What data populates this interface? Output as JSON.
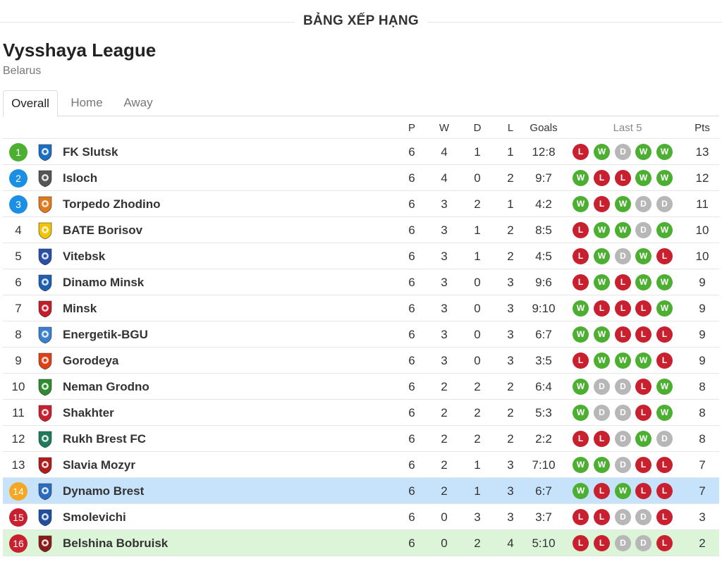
{
  "section_title": "BẢNG XẾP HẠNG",
  "league": {
    "name": "Vysshaya League",
    "country": "Belarus"
  },
  "tabs": [
    {
      "label": "Overall",
      "active": true
    },
    {
      "label": "Home",
      "active": false
    },
    {
      "label": "Away",
      "active": false
    }
  ],
  "headers": {
    "p": "P",
    "w": "W",
    "d": "D",
    "l": "L",
    "goals": "Goals",
    "last5": "Last 5",
    "pts": "Pts"
  },
  "colors": {
    "rank_green": "#4caf32",
    "rank_blue": "#1a8fe3",
    "rank_orange": "#f5a623",
    "rank_red": "#c8202e",
    "form_win": "#4caf32",
    "form_loss": "#c8202e",
    "form_draw": "#b7b7b7",
    "row_highlight_blue": "#c7e3fb",
    "row_highlight_green": "#dcf5d9"
  },
  "rows": [
    {
      "rank": "1",
      "badge": "green",
      "logo": "fk-slutsk-crest-icon",
      "team": "FK Slutsk",
      "p": "6",
      "w": "4",
      "d": "1",
      "l": "1",
      "goals": "12:8",
      "form": [
        "L",
        "W",
        "D",
        "W",
        "W"
      ],
      "pts": "13",
      "highlight": ""
    },
    {
      "rank": "2",
      "badge": "blue",
      "logo": "isloch-crest-icon",
      "team": "Isloch",
      "p": "6",
      "w": "4",
      "d": "0",
      "l": "2",
      "goals": "9:7",
      "form": [
        "W",
        "L",
        "L",
        "W",
        "W"
      ],
      "pts": "12",
      "highlight": ""
    },
    {
      "rank": "3",
      "badge": "blue",
      "logo": "torpedo-zhodino-crest-icon",
      "team": "Torpedo Zhodino",
      "p": "6",
      "w": "3",
      "d": "2",
      "l": "1",
      "goals": "4:2",
      "form": [
        "W",
        "L",
        "W",
        "D",
        "D"
      ],
      "pts": "11",
      "highlight": ""
    },
    {
      "rank": "4",
      "badge": "",
      "logo": "bate-borisov-crest-icon",
      "team": "BATE Borisov",
      "p": "6",
      "w": "3",
      "d": "1",
      "l": "2",
      "goals": "8:5",
      "form": [
        "L",
        "W",
        "W",
        "D",
        "W"
      ],
      "pts": "10",
      "highlight": ""
    },
    {
      "rank": "5",
      "badge": "",
      "logo": "vitebsk-crest-icon",
      "team": "Vitebsk",
      "p": "6",
      "w": "3",
      "d": "1",
      "l": "2",
      "goals": "4:5",
      "form": [
        "L",
        "W",
        "D",
        "W",
        "L"
      ],
      "pts": "10",
      "highlight": ""
    },
    {
      "rank": "6",
      "badge": "",
      "logo": "dinamo-minsk-crest-icon",
      "team": "Dinamo Minsk",
      "p": "6",
      "w": "3",
      "d": "0",
      "l": "3",
      "goals": "9:6",
      "form": [
        "L",
        "W",
        "L",
        "W",
        "W"
      ],
      "pts": "9",
      "highlight": ""
    },
    {
      "rank": "7",
      "badge": "",
      "logo": "minsk-crest-icon",
      "team": "Minsk",
      "p": "6",
      "w": "3",
      "d": "0",
      "l": "3",
      "goals": "9:10",
      "form": [
        "W",
        "L",
        "L",
        "L",
        "W"
      ],
      "pts": "9",
      "highlight": ""
    },
    {
      "rank": "8",
      "badge": "",
      "logo": "energetik-bgu-crest-icon",
      "team": "Energetik-BGU",
      "p": "6",
      "w": "3",
      "d": "0",
      "l": "3",
      "goals": "6:7",
      "form": [
        "W",
        "W",
        "L",
        "L",
        "L"
      ],
      "pts": "9",
      "highlight": ""
    },
    {
      "rank": "9",
      "badge": "",
      "logo": "gorodeya-crest-icon",
      "team": "Gorodeya",
      "p": "6",
      "w": "3",
      "d": "0",
      "l": "3",
      "goals": "3:5",
      "form": [
        "L",
        "W",
        "W",
        "W",
        "L"
      ],
      "pts": "9",
      "highlight": ""
    },
    {
      "rank": "10",
      "badge": "",
      "logo": "neman-grodno-crest-icon",
      "team": "Neman Grodno",
      "p": "6",
      "w": "2",
      "d": "2",
      "l": "2",
      "goals": "6:4",
      "form": [
        "W",
        "D",
        "D",
        "L",
        "W"
      ],
      "pts": "8",
      "highlight": ""
    },
    {
      "rank": "11",
      "badge": "",
      "logo": "shakhter-crest-icon",
      "team": "Shakhter",
      "p": "6",
      "w": "2",
      "d": "2",
      "l": "2",
      "goals": "5:3",
      "form": [
        "W",
        "D",
        "D",
        "L",
        "W"
      ],
      "pts": "8",
      "highlight": ""
    },
    {
      "rank": "12",
      "badge": "",
      "logo": "rukh-brest-crest-icon",
      "team": "Rukh Brest FC",
      "p": "6",
      "w": "2",
      "d": "2",
      "l": "2",
      "goals": "2:2",
      "form": [
        "L",
        "L",
        "D",
        "W",
        "D"
      ],
      "pts": "8",
      "highlight": ""
    },
    {
      "rank": "13",
      "badge": "",
      "logo": "slavia-mozyr-crest-icon",
      "team": "Slavia Mozyr",
      "p": "6",
      "w": "2",
      "d": "1",
      "l": "3",
      "goals": "7:10",
      "form": [
        "W",
        "W",
        "D",
        "L",
        "L"
      ],
      "pts": "7",
      "highlight": ""
    },
    {
      "rank": "14",
      "badge": "orange",
      "logo": "dynamo-brest-crest-icon",
      "team": "Dynamo Brest",
      "p": "6",
      "w": "2",
      "d": "1",
      "l": "3",
      "goals": "6:7",
      "form": [
        "W",
        "L",
        "W",
        "L",
        "L"
      ],
      "pts": "7",
      "highlight": "blue"
    },
    {
      "rank": "15",
      "badge": "red",
      "logo": "smolevichi-crest-icon",
      "team": "Smolevichi",
      "p": "6",
      "w": "0",
      "d": "3",
      "l": "3",
      "goals": "3:7",
      "form": [
        "L",
        "L",
        "D",
        "D",
        "L"
      ],
      "pts": "3",
      "highlight": ""
    },
    {
      "rank": "16",
      "badge": "red",
      "logo": "belshina-bobruisk-crest-icon",
      "team": "Belshina Bobruisk",
      "p": "6",
      "w": "0",
      "d": "2",
      "l": "4",
      "goals": "5:10",
      "form": [
        "L",
        "L",
        "D",
        "D",
        "L"
      ],
      "pts": "2",
      "highlight": "green"
    }
  ]
}
